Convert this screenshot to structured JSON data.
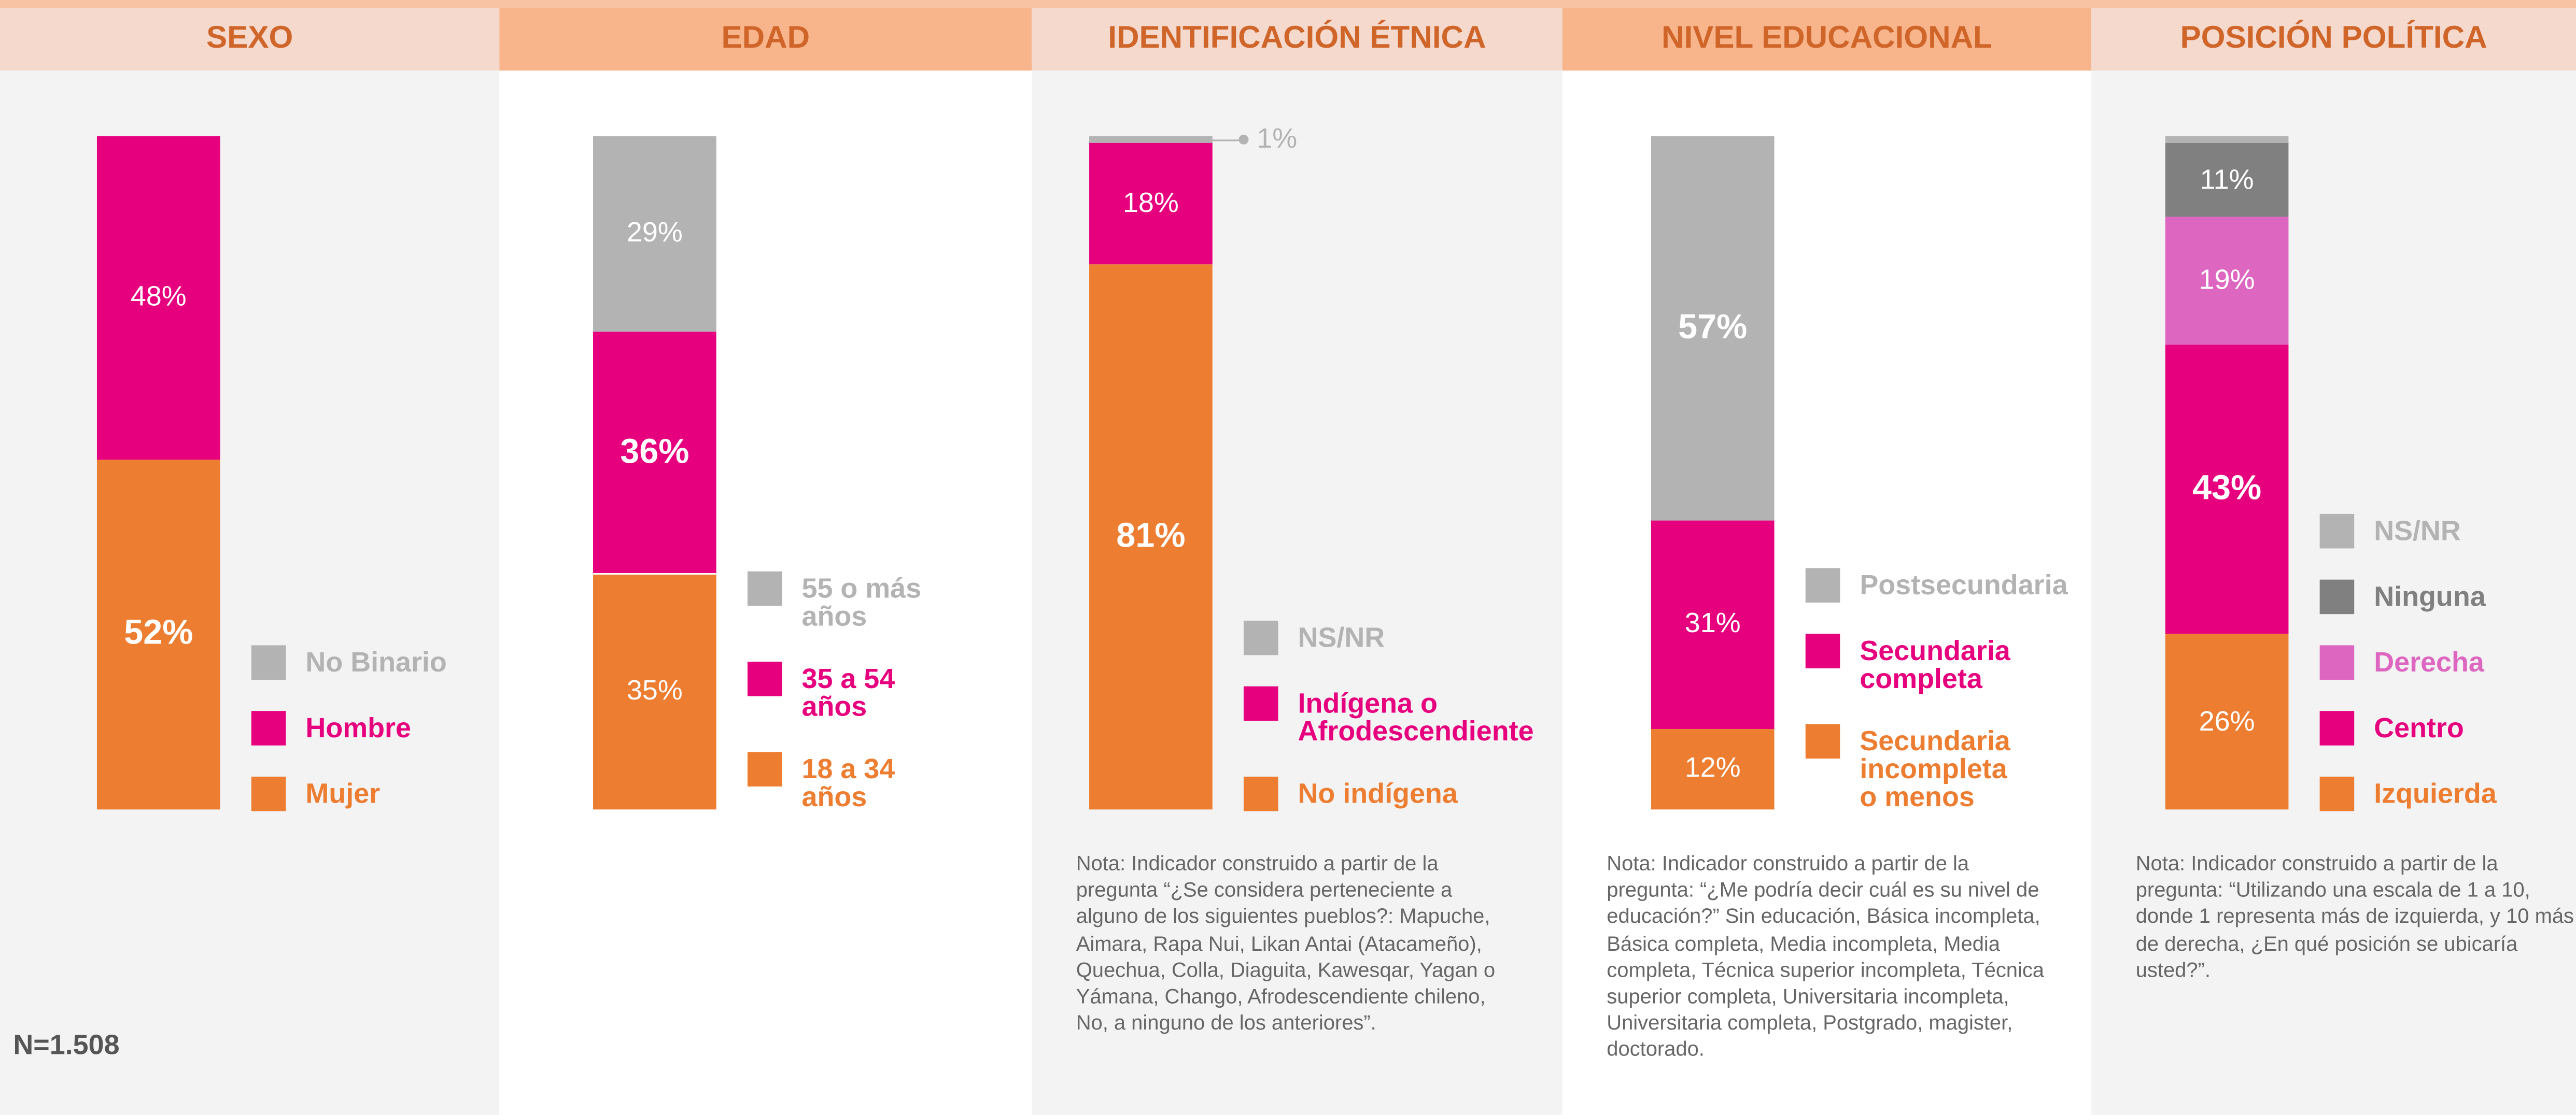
{
  "chart_data": [
    {
      "type": "stacked_bar",
      "title": "SEXO",
      "series": [
        {
          "name": "Mujer",
          "color": "#ed7d31",
          "values": [
            52
          ],
          "value_labels": [
            "52%"
          ]
        },
        {
          "name": "Hombre",
          "color": "#e6007e",
          "values": [
            48
          ],
          "value_labels": [
            "48%"
          ]
        },
        {
          "name": "No Binario",
          "color": "#b3b3b3",
          "values": [
            0
          ]
        }
      ]
    },
    {
      "type": "stacked_bar",
      "title": "EDAD",
      "series": [
        {
          "name": "18 a 34 años",
          "color": "#ed7d31",
          "values": [
            35
          ],
          "value_labels": [
            "35%"
          ]
        },
        {
          "name": "35 a 54 años",
          "color": "#e6007e",
          "values": [
            36
          ],
          "value_labels": [
            "36%"
          ]
        },
        {
          "name": "55 o más años",
          "color": "#b3b3b3",
          "values": [
            29
          ],
          "value_labels": [
            "29%"
          ]
        }
      ]
    },
    {
      "type": "stacked_bar",
      "title": "IDENTIFICACIÓN ÉTNICA",
      "series": [
        {
          "name": "No indígena",
          "color": "#ed7d31",
          "values": [
            81
          ],
          "value_labels": [
            "81%"
          ]
        },
        {
          "name": "Indígena o Afrodescendiente",
          "color": "#e6007e",
          "values": [
            18
          ],
          "value_labels": [
            "18%"
          ]
        },
        {
          "name": "NS/NR",
          "color": "#b3b3b3",
          "values": [
            1
          ],
          "value_labels": [
            "1%"
          ]
        }
      ],
      "note": "Nota: Indicador construido a partir de la pregunta “¿Se considera perteneciente a alguno de los siguientes pueblos?: Mapuche, Aimara, Rapa Nui, Likan Antai (Atacameño), Quechua, Colla, Diaguita, Kawesqar, Yagan o Yámana, Chango, Afrodescendiente chileno, No, a ninguno de los anteriores”."
    },
    {
      "type": "stacked_bar",
      "title": "NIVEL EDUCACIONAL",
      "series": [
        {
          "name": "Secundaria incompleta o menos",
          "color": "#ed7d31",
          "values": [
            12
          ],
          "value_labels": [
            "12%"
          ]
        },
        {
          "name": "Secundaria completa",
          "color": "#e6007e",
          "values": [
            31
          ],
          "value_labels": [
            "31%"
          ]
        },
        {
          "name": "Postsecundaria",
          "color": "#b3b3b3",
          "values": [
            57
          ],
          "value_labels": [
            "57%"
          ]
        }
      ],
      "note": "Nota: Indicador construido a partir de la pregunta: “¿Me podría decir cuál es su nivel de educación?” Sin educación, Básica incompleta, Básica completa, Media incompleta, Media completa, Técnica superior incompleta, Técnica superior completa, Universitaria incompleta, Universitaria completa, Postgrado, magister, doctorado."
    },
    {
      "type": "stacked_bar",
      "title": "POSICIÓN POLÍTICA",
      "series": [
        {
          "name": "Izquierda",
          "color": "#ed7d31",
          "values": [
            26
          ],
          "value_labels": [
            "26%"
          ]
        },
        {
          "name": "Centro",
          "color": "#e6007e",
          "values": [
            43
          ],
          "value_labels": [
            "43%"
          ]
        },
        {
          "name": "Derecha",
          "color": "#dd66c0",
          "values": [
            19
          ],
          "value_labels": [
            "19%"
          ]
        },
        {
          "name": "Ninguna",
          "color": "#808080",
          "values": [
            11
          ],
          "value_labels": [
            "11%"
          ]
        },
        {
          "name": "NS/NR",
          "color": "#b3b3b3",
          "values": [
            1
          ]
        }
      ],
      "note": "Nota: Indicador construido a partir de la pregunta: “Utilizando una escala de 1 a 10, donde 1 representa más de izquierda, y 10 más de derecha, ¿En qué posición se ubicaría usted?”."
    }
  ],
  "footer": "N=1.508"
}
